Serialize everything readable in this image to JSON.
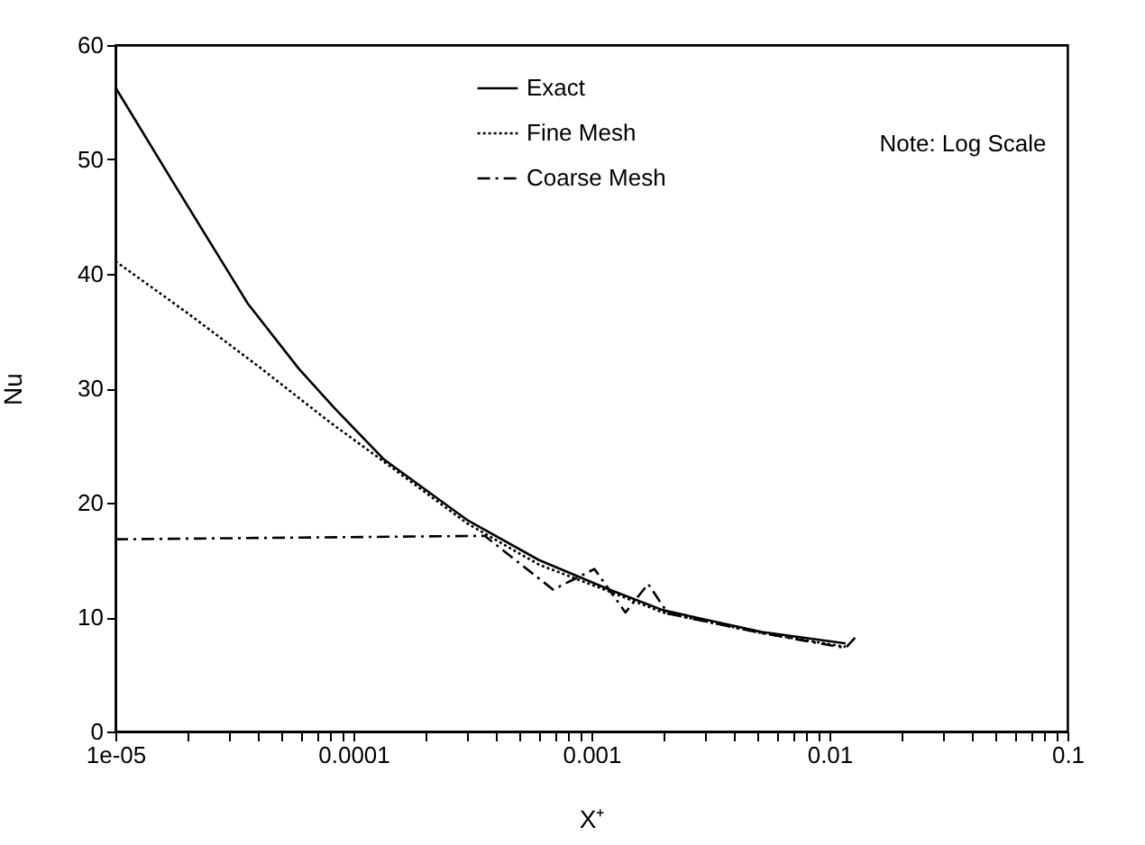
{
  "chart_data": {
    "type": "line",
    "xlabel": "X⁺",
    "ylabel": "Nu",
    "log": "x",
    "xlim": [
      1e-05,
      0.1
    ],
    "xticks": [
      {
        "value": 1e-05,
        "label": "1e-05"
      },
      {
        "value": 2e-05,
        "label": null
      },
      {
        "value": 3e-05,
        "label": null
      },
      {
        "value": 4e-05,
        "label": null
      },
      {
        "value": 5e-05,
        "label": null
      },
      {
        "value": 6e-05,
        "label": null
      },
      {
        "value": 7e-05,
        "label": null
      },
      {
        "value": 8e-05,
        "label": null
      },
      {
        "value": 9e-05,
        "label": null
      },
      {
        "value": 0.0001,
        "label": "0.0001"
      },
      {
        "value": 0.0002,
        "label": null
      },
      {
        "value": 0.0003,
        "label": null
      },
      {
        "value": 0.0004,
        "label": null
      },
      {
        "value": 0.0005,
        "label": null
      },
      {
        "value": 0.0006,
        "label": null
      },
      {
        "value": 0.0007,
        "label": null
      },
      {
        "value": 0.0008,
        "label": null
      },
      {
        "value": 0.0009,
        "label": null
      },
      {
        "value": 0.001,
        "label": "0.001"
      },
      {
        "value": 0.002,
        "label": null
      },
      {
        "value": 0.003,
        "label": null
      },
      {
        "value": 0.004,
        "label": null
      },
      {
        "value": 0.005,
        "label": null
      },
      {
        "value": 0.006,
        "label": null
      },
      {
        "value": 0.007,
        "label": null
      },
      {
        "value": 0.008,
        "label": null
      },
      {
        "value": 0.009,
        "label": null
      },
      {
        "value": 0.01,
        "label": "0.01"
      },
      {
        "value": 0.02,
        "label": null
      },
      {
        "value": 0.03,
        "label": null
      },
      {
        "value": 0.04,
        "label": null
      },
      {
        "value": 0.05,
        "label": null
      },
      {
        "value": 0.06,
        "label": null
      },
      {
        "value": 0.07,
        "label": null
      },
      {
        "value": 0.08,
        "label": null
      },
      {
        "value": 0.09,
        "label": null
      },
      {
        "value": 0.1,
        "label": "0.1"
      }
    ],
    "ylim": [
      0,
      60
    ],
    "yticks": [
      0,
      10,
      20,
      30,
      40,
      50,
      60
    ],
    "grid": false,
    "legend": "top",
    "annotations": [
      "Note:  Log Scale"
    ],
    "series": [
      {
        "name": "Exact",
        "color": "#000000",
        "line_style": "solid",
        "x": [
          1e-05,
          1.76e-05,
          3.6e-05,
          5.9e-05,
          8.3e-05,
          0.000134,
          0.0003,
          0.0006,
          0.00119,
          0.002,
          0.0052,
          0.0117
        ],
        "values": [
          56.3,
          47.9,
          37.4,
          31.7,
          28.3,
          23.8,
          18.5,
          15,
          12.4,
          10.6,
          8.7,
          7.7
        ]
      },
      {
        "name": "Fine Mesh",
        "color": "#000000",
        "line_style": "dotted",
        "x": [
          1e-05,
          2e-05,
          4e-05,
          8e-05,
          0.000134,
          0.0003,
          0.0006,
          0.0012,
          0.002,
          0.0052,
          0.0117
        ],
        "values": [
          41.1,
          36.6,
          31.9,
          27,
          23.6,
          18.2,
          14.6,
          12.2,
          10.4,
          8.6,
          7.4
        ]
      },
      {
        "name": "Coarse Mesh",
        "color": "#000000",
        "line_style": "dashed",
        "x": [
          1e-05,
          0.000356,
          0.00069,
          0.00103,
          0.00139,
          0.00173,
          0.0021,
          0.0052,
          0.0117,
          0.0132
        ],
        "values": [
          16.8,
          17.1,
          12.4,
          14.2,
          10.4,
          12.9,
          10.3,
          8.6,
          7.3,
          8.5
        ]
      }
    ]
  }
}
